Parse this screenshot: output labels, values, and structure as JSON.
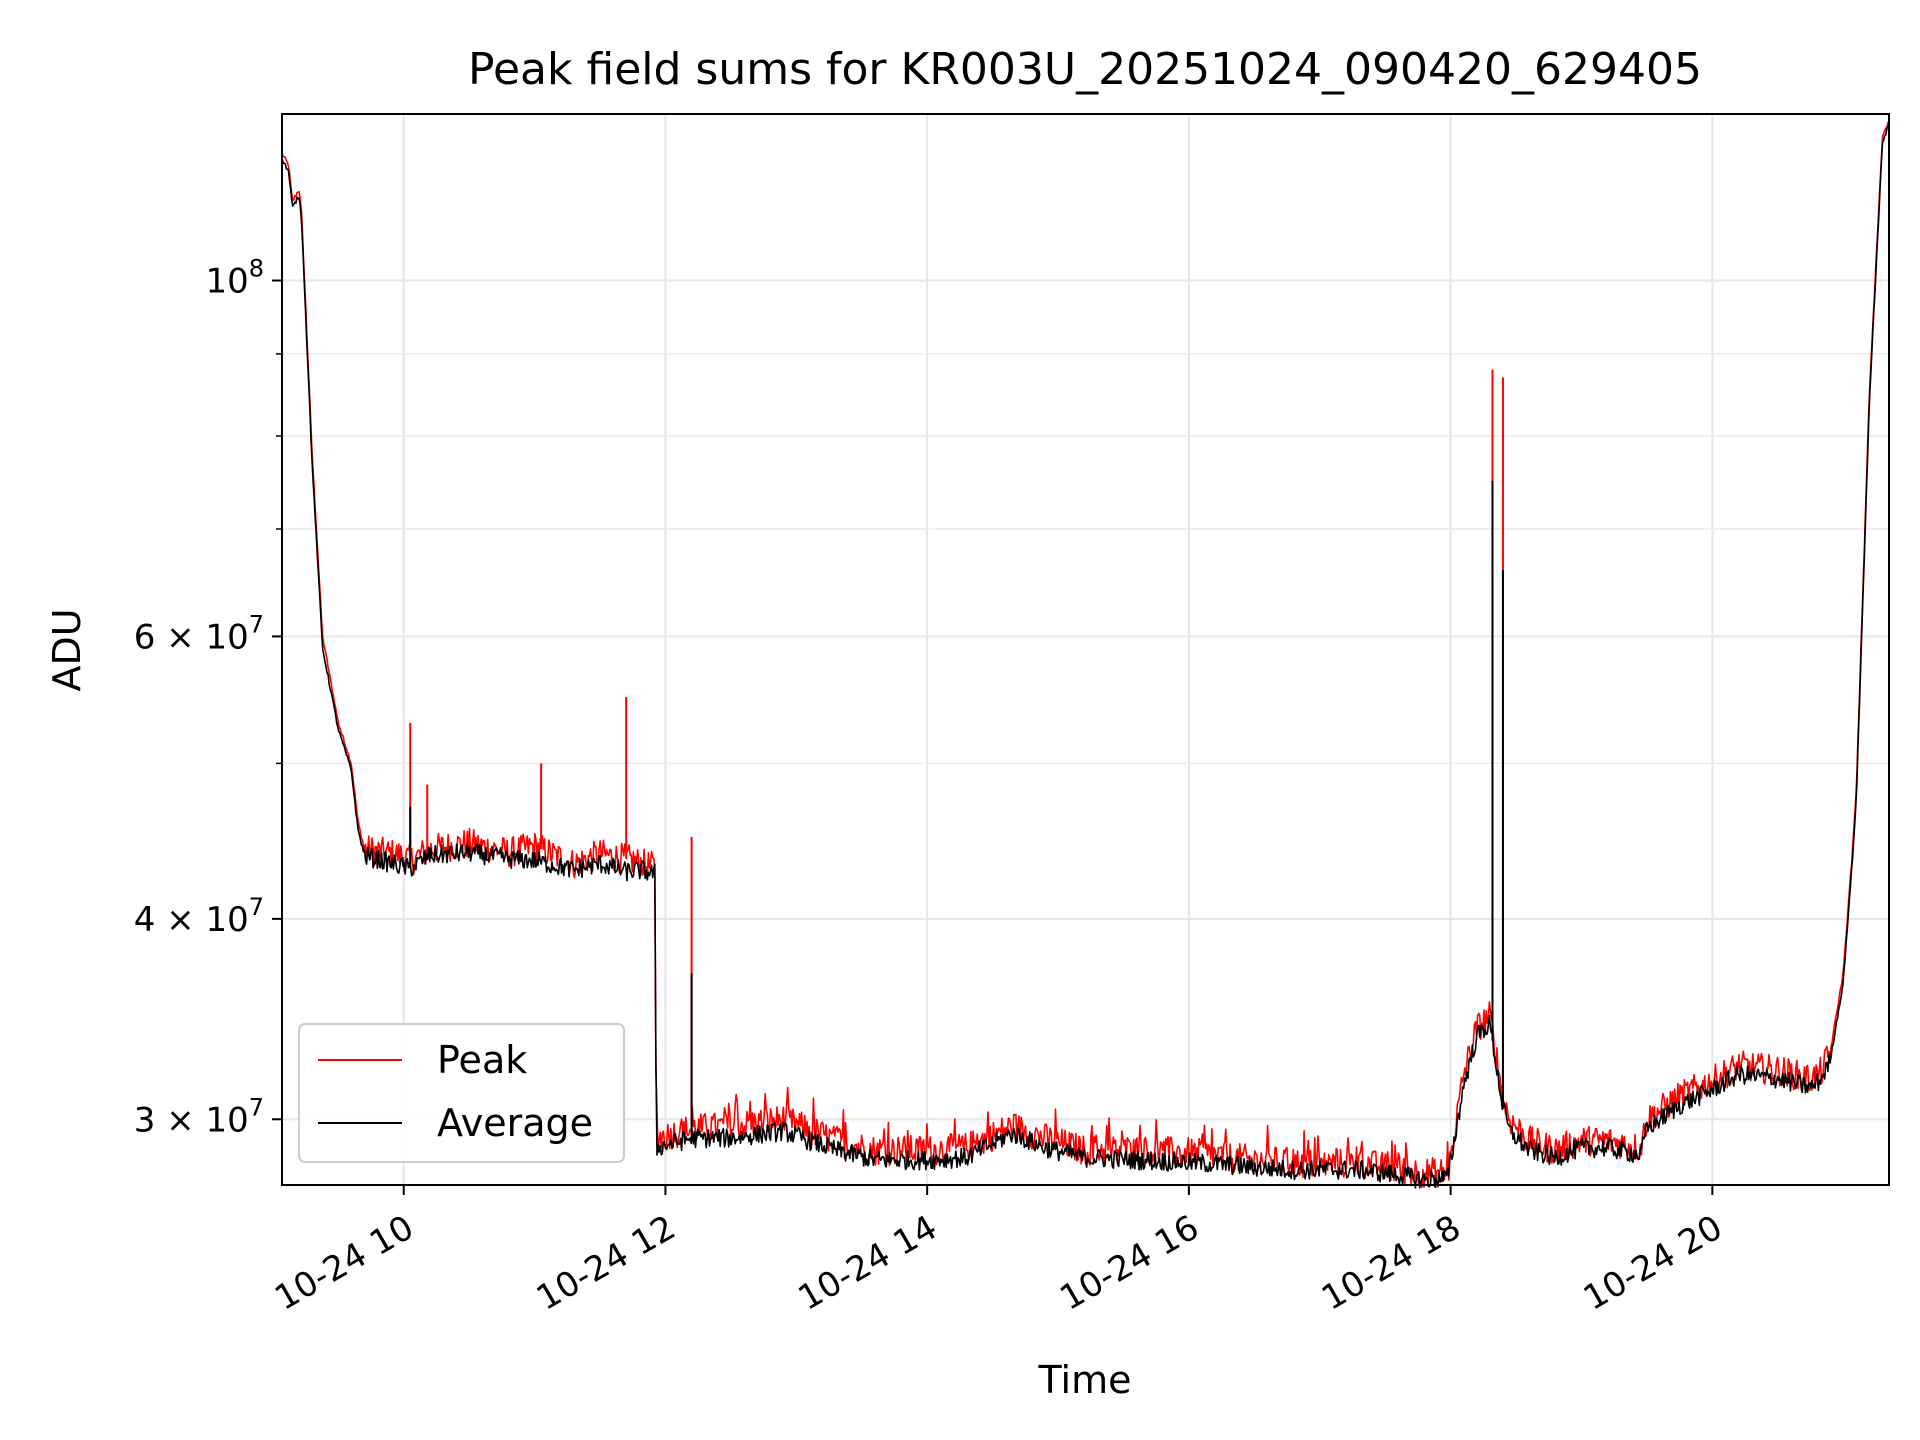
{
  "chart_data": {
    "type": "line",
    "title": "Peak field sums for KR003U_20251024_090420_629405",
    "xlabel": "Time",
    "ylabel": "ADU",
    "yscale": "log",
    "grid": true,
    "legend_position": "lower-left",
    "xlim": [
      9.07,
      21.35
    ],
    "ylim": [
      27300000,
      127000000
    ],
    "x_ticks": [
      {
        "value": 10,
        "label": "10-24 10"
      },
      {
        "value": 12,
        "label": "10-24 12"
      },
      {
        "value": 14,
        "label": "10-24 14"
      },
      {
        "value": 16,
        "label": "10-24 16"
      },
      {
        "value": 18,
        "label": "10-24 18"
      },
      {
        "value": 20,
        "label": "10-24 20"
      }
    ],
    "y_major_ticks": [
      {
        "value": 30000000,
        "mantissa": "3",
        "exponent": "7"
      },
      {
        "value": 40000000,
        "mantissa": "4",
        "exponent": "7"
      },
      {
        "value": 60000000,
        "mantissa": "6",
        "exponent": "7"
      },
      {
        "value": 100000000,
        "mantissa": "",
        "exponent": "8"
      }
    ],
    "y_minor_ticks": [
      50000000,
      70000000,
      80000000,
      90000000
    ],
    "base_label": "10",
    "times_sign": "×",
    "series": [
      {
        "name": "Peak",
        "color": "#ff0000",
        "x": [
          9.07,
          9.12,
          9.15,
          9.2,
          9.22,
          9.3,
          9.38,
          9.5,
          9.6,
          9.65,
          9.7,
          10.0,
          10.05,
          10.2,
          10.5,
          10.8,
          11.0,
          11.3,
          11.5,
          11.7,
          11.83,
          11.85,
          11.92,
          11.93,
          12.2,
          12.5,
          12.9,
          13.3,
          13.6,
          14.0,
          14.3,
          14.65,
          14.9,
          15.2,
          15.6,
          16.0,
          16.3,
          16.5,
          16.8,
          17.0,
          17.3,
          17.6,
          17.8,
          17.98,
          18.1,
          18.2,
          18.3,
          18.4,
          18.45,
          18.6,
          18.8,
          19.0,
          19.2,
          19.45,
          19.5,
          19.75,
          20.0,
          20.2,
          20.5,
          20.75,
          20.82,
          20.9,
          21.0,
          21.07,
          21.1,
          21.2,
          21.3,
          21.35
        ],
        "y": [
          120000000,
          118000000,
          112000000,
          114000000,
          110000000,
          78000000,
          60000000,
          53000000,
          50000000,
          46000000,
          44200000,
          43800000,
          43500000,
          44200000,
          44600000,
          44000000,
          44400000,
          43300000,
          43900000,
          43600000,
          43300000,
          43200000,
          43100000,
          29200000,
          29600000,
          29700000,
          30000000,
          29100000,
          28700000,
          28700000,
          28800000,
          29700000,
          29200000,
          28700000,
          28700000,
          28600000,
          28400000,
          28300000,
          28200000,
          28100000,
          28200000,
          27900000,
          27800000,
          27800000,
          32000000,
          34200000,
          34800000,
          31000000,
          30000000,
          29100000,
          28700000,
          29100000,
          29100000,
          28800000,
          30000000,
          31000000,
          31700000,
          32400000,
          32200000,
          31800000,
          32000000,
          33000000,
          37000000,
          44000000,
          48000000,
          85000000,
          123000000,
          126000000
        ]
      },
      {
        "name": "Average",
        "color": "#000000",
        "x": [
          9.07,
          9.12,
          9.15,
          9.2,
          9.22,
          9.3,
          9.38,
          9.5,
          9.6,
          9.65,
          9.7,
          10.0,
          10.05,
          10.2,
          10.5,
          10.8,
          11.0,
          11.3,
          11.5,
          11.7,
          11.83,
          11.85,
          11.92,
          11.93,
          12.2,
          12.5,
          12.9,
          13.3,
          13.6,
          14.0,
          14.3,
          14.65,
          14.9,
          15.2,
          15.6,
          16.0,
          16.3,
          16.5,
          16.8,
          17.0,
          17.3,
          17.6,
          17.8,
          17.98,
          18.1,
          18.2,
          18.3,
          18.4,
          18.45,
          18.6,
          18.8,
          19.0,
          19.2,
          19.45,
          19.5,
          19.75,
          20.0,
          20.2,
          20.5,
          20.75,
          20.82,
          20.9,
          21.0,
          21.07,
          21.1,
          21.2,
          21.3,
          21.35
        ],
        "y": [
          119000000,
          117000000,
          111000000,
          113000000,
          109000000,
          77000000,
          59000000,
          52500000,
          49500000,
          45500000,
          43800000,
          43100000,
          43000000,
          43800000,
          44000000,
          43600000,
          43500000,
          42900000,
          43300000,
          42800000,
          42900000,
          42800000,
          42700000,
          28800000,
          29200000,
          29200000,
          29500000,
          28700000,
          28300000,
          28300000,
          28400000,
          29400000,
          28800000,
          28400000,
          28300000,
          28200000,
          28100000,
          28000000,
          27900000,
          27900000,
          27900000,
          27700000,
          27500000,
          27600000,
          31500000,
          33800000,
          34400000,
          30500000,
          29500000,
          28700000,
          28400000,
          28800000,
          28800000,
          28500000,
          29600000,
          30600000,
          31300000,
          32000000,
          31800000,
          31400000,
          31700000,
          32600000,
          36500000,
          43500000,
          47500000,
          84000000,
          122000000,
          125000000
        ]
      }
    ],
    "spikes": {
      "Peak": [
        [
          10.05,
          53000000
        ],
        [
          10.18,
          48500000
        ],
        [
          11.05,
          50000000
        ],
        [
          11.7,
          55000000
        ],
        [
          12.2,
          45000000
        ],
        [
          18.32,
          88000000
        ],
        [
          18.4,
          87000000
        ]
      ],
      "Average": [
        [
          10.05,
          47000000
        ],
        [
          12.2,
          37000000
        ],
        [
          18.32,
          75000000
        ],
        [
          18.4,
          66000000
        ]
      ]
    }
  }
}
